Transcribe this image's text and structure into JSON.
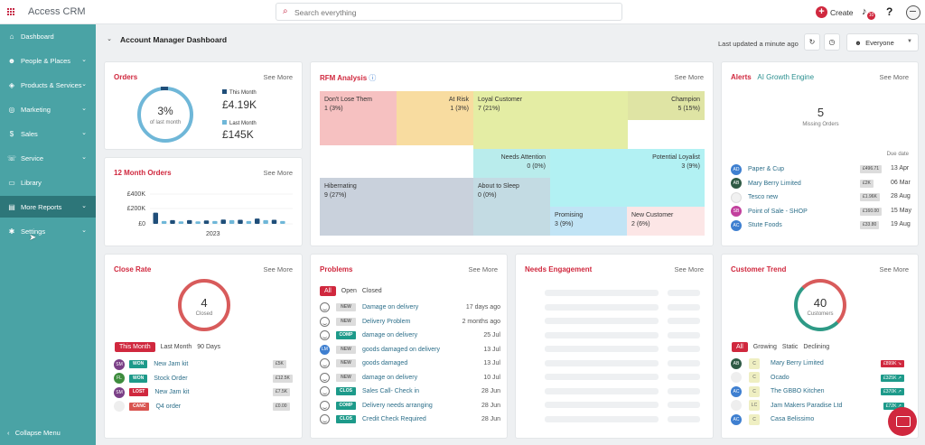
{
  "app": {
    "title": "Access CRM"
  },
  "header": {
    "search_placeholder": "Search everything",
    "create_label": "Create",
    "notifications_count": "10",
    "help_label": "?"
  },
  "sidebar": {
    "items": [
      {
        "label": "Dashboard",
        "icon": "home-icon",
        "glyph": "⌂"
      },
      {
        "label": "People & Places",
        "icon": "people-icon",
        "glyph": "☻"
      },
      {
        "label": "Products & Services",
        "icon": "box-icon",
        "glyph": "◈"
      },
      {
        "label": "Marketing",
        "icon": "target-icon",
        "glyph": "◎"
      },
      {
        "label": "Sales",
        "icon": "dollar-icon",
        "glyph": "$"
      },
      {
        "label": "Service",
        "icon": "headset-icon",
        "glyph": "☏"
      },
      {
        "label": "Library",
        "icon": "folder-icon",
        "glyph": "▭"
      },
      {
        "label": "More Reports",
        "icon": "chart-icon",
        "glyph": "▤"
      },
      {
        "label": "Settings",
        "icon": "gear-icon",
        "glyph": "✱"
      }
    ],
    "active_index": 7,
    "collapse_label": "Collapse Menu"
  },
  "dashboard": {
    "title": "Account Manager Dashboard",
    "last_updated": "Last updated a minute ago",
    "scope": "Everyone"
  },
  "see_more": "See More",
  "orders": {
    "title": "Orders",
    "percent": "3%",
    "percent_sub": "of last month",
    "this_month_label": "This Month",
    "this_month_value": "£4.19K",
    "last_month_label": "Last Month",
    "last_month_value": "£145K"
  },
  "twelve_month": {
    "title": "12 Month Orders"
  },
  "chart_data": {
    "type": "bar",
    "title": "12 Month Orders",
    "xlabel": "2023",
    "yticks": [
      "£400K",
      "£200K",
      "£0"
    ],
    "ylim": [
      0,
      480
    ],
    "values": [
      180,
      45,
      60,
      40,
      60,
      40,
      55,
      45,
      70,
      60,
      65,
      45,
      85,
      60,
      65,
      45
    ],
    "colors": [
      "#1f4e79",
      "#6fb7d8",
      "#1f4e79",
      "#6fb7d8",
      "#1f4e79",
      "#6fb7d8",
      "#1f4e79",
      "#6fb7d8",
      "#1f4e79",
      "#6fb7d8",
      "#1f4e79",
      "#6fb7d8",
      "#1f4e79",
      "#6fb7d8",
      "#1f4e79",
      "#6fb7d8"
    ]
  },
  "rfm": {
    "title": "RFM Analysis",
    "cells": [
      {
        "name": "Don't Lose Them",
        "value": "1 (3%)",
        "color": "#f6c1c1"
      },
      {
        "name": "At Risk",
        "value": "1 (3%)",
        "color": "#f8dca0"
      },
      {
        "name": "Loyal Customer",
        "value": "7 (21%)",
        "color": "#e4eda4"
      },
      {
        "name": "Champion",
        "value": "5 (15%)",
        "color": "#dfe4a4"
      },
      {
        "name": "Needs Attention",
        "value": "0 (0%)",
        "color": "#b9ecec"
      },
      {
        "name": "Potential Loyalist",
        "value": "3 (9%)",
        "color": "#b2f1f3"
      },
      {
        "name": "Hibernating",
        "value": "9 (27%)",
        "color": "#c9d1dc"
      },
      {
        "name": "About to Sleep",
        "value": "0 (0%)",
        "color": "#c3dbe3"
      },
      {
        "name": "Promising",
        "value": "3 (9%)",
        "color": "#c1e4f5"
      },
      {
        "name": "New Customer",
        "value": "2 (6%)",
        "color": "#fce6e6"
      }
    ]
  },
  "alerts": {
    "title": "Alerts",
    "subtitle": "AI Growth Engine",
    "missing_count": "5",
    "missing_label": "Missing Orders",
    "due_label": "Due date",
    "rows": [
      {
        "initials": "AD",
        "color": "#3e7fd0",
        "name": "Paper & Cup",
        "amount": "£496.71",
        "date": "13 Apr"
      },
      {
        "initials": "AB",
        "color": "#2f5a45",
        "name": "Mary Berry Limited",
        "amount": "£2K",
        "date": "06 Mar"
      },
      {
        "initials": "",
        "color": "#f1f1f1",
        "name": "Tesco new",
        "amount": "£1.96K",
        "date": "28 Aug"
      },
      {
        "initials": "SB",
        "color": "#c2409d",
        "name": "Point of Sale - SHOP",
        "amount": "£160.00",
        "date": "15 May"
      },
      {
        "initials": "AC",
        "color": "#3e7fd0",
        "name": "Stute Foods",
        "amount": "£33.80",
        "date": "19 Aug"
      }
    ]
  },
  "close_rate": {
    "title": "Close Rate",
    "count": "4",
    "count_label": "Closed",
    "filters": [
      "This Month",
      "Last Month",
      "90 Days"
    ],
    "rows": [
      {
        "initials": "SM",
        "color": "#7a3f86",
        "status": "WON",
        "status_color": "#1d9a8a",
        "name": "New Jam kit",
        "amount": "£5K"
      },
      {
        "initials": "FL",
        "color": "#3e8c3e",
        "status": "WON",
        "status_color": "#1d9a8a",
        "name": "Stock Order",
        "amount": "£12.5K"
      },
      {
        "initials": "SM",
        "color": "#7a3f86",
        "status": "LOST",
        "status_color": "#d0283e",
        "name": "New Jam kit",
        "amount": "£7.5K"
      },
      {
        "initials": "",
        "color": "#eeeeee",
        "status": "CANC",
        "status_color": "#d9534f",
        "name": "Q4 order",
        "amount": "£0.00"
      }
    ]
  },
  "problems": {
    "title": "Problems",
    "filters": [
      "All",
      "Open",
      "Closed"
    ],
    "rows": [
      {
        "status": "NEW",
        "name": "Damage on delivery",
        "date": "17 days ago"
      },
      {
        "status": "NEW",
        "name": "Delivery Problem",
        "date": "2 months ago"
      },
      {
        "status": "COMP",
        "name": "damage on delivery",
        "date": "25 Jul"
      },
      {
        "status": "NEW",
        "name": "goods damaged on delivery",
        "date": "13 Jul",
        "initials": "LM"
      },
      {
        "status": "NEW",
        "name": "goods damaged",
        "date": "13 Jul"
      },
      {
        "status": "NEW",
        "name": "damage on delivery",
        "date": "10 Jul"
      },
      {
        "status": "CLOS",
        "name": "Sales Call- Check in",
        "date": "28 Jun"
      },
      {
        "status": "COMP",
        "name": "Delivery needs arranging",
        "date": "28 Jun"
      },
      {
        "status": "CLOS",
        "name": "Credit Check Required",
        "date": "28 Jun"
      }
    ]
  },
  "needs_engagement": {
    "title": "Needs Engagement"
  },
  "customer_trend": {
    "title": "Customer Trend",
    "count": "40",
    "count_label": "Customers",
    "filters": [
      "All",
      "Growing",
      "Static",
      "Declining"
    ],
    "rows": [
      {
        "initials": "AB",
        "color": "#2f5a45",
        "lc": "C",
        "name": "Mary Berry Limited",
        "trend": "£899K ↘",
        "trend_color": "#d0283e"
      },
      {
        "initials": "",
        "color": "#eeeeee",
        "lc": "C",
        "name": "Ocado",
        "trend": "£325K ↗",
        "trend_color": "#1d9a8a"
      },
      {
        "initials": "AC",
        "color": "#3e7fd0",
        "lc": "C",
        "name": "The GBBO Kitchen",
        "trend": "£370K ↗",
        "trend_color": "#1d9a8a"
      },
      {
        "initials": "",
        "color": "#eeeeee",
        "lc": "LC",
        "name": "Jam Makers Paradise Ltd",
        "trend": "£72K ↗",
        "trend_color": "#1d9a8a"
      },
      {
        "initials": "AC",
        "color": "#3e7fd0",
        "lc": "C",
        "name": "Casa Belissimo",
        "trend": "£",
        "trend_color": "#1d9a8a"
      }
    ]
  }
}
